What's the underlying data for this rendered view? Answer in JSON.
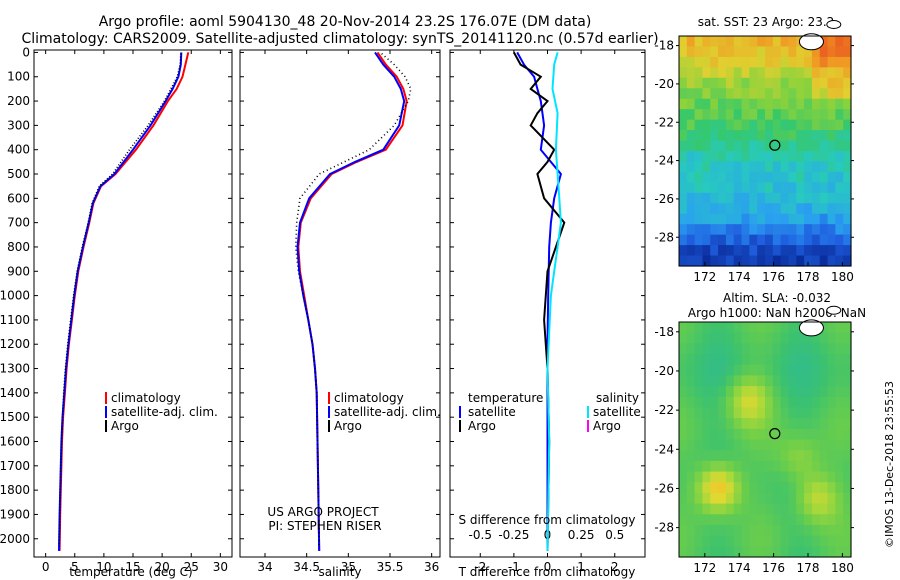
{
  "title_line1": "Argo profile: aoml 5904130_48 20-Nov-2014 23.2S 176.07E (DM data)",
  "title_line2": "Climatology: CARS2009. Satellite-adjusted climatology: synTS_20141120.nc (0.57d earlier)",
  "depth_ticks": [
    "0",
    "100",
    "200",
    "300",
    "400",
    "500",
    "600",
    "700",
    "800",
    "900",
    "1000",
    "1100",
    "1200",
    "1300",
    "1400",
    "1500",
    "1600",
    "1700",
    "1800",
    "1900",
    "2000"
  ],
  "colors": {
    "red": "#ff0000",
    "blue": "#0000ff",
    "black": "#000000",
    "cyan": "#00e5ff",
    "magenta": "#ff00ff"
  },
  "chart_data": [
    {
      "type": "line",
      "title": "",
      "xlabel": "temperature (deg C)",
      "ylabel": "depth",
      "xlim": [
        -2,
        32
      ],
      "ylim": [
        2075,
        -10
      ],
      "xticks": [
        "0",
        "5",
        "10",
        "15",
        "20",
        "25",
        "30"
      ],
      "xtick_values": [
        0,
        5,
        10,
        15,
        20,
        25,
        30
      ],
      "legend": [
        "climatology",
        "satellite-adj. clim.",
        "Argo"
      ],
      "series": [
        {
          "name": "climatology",
          "color": "red",
          "dash": "",
          "x": [
            24.5,
            24.0,
            23.5,
            22.5,
            21.0,
            18.5,
            15.5,
            12.0,
            9.5,
            8.2,
            7.5,
            6.5,
            5.6,
            5.0,
            4.5,
            4.0,
            3.6,
            3.3,
            3.0,
            2.8,
            2.6,
            2.5,
            2.4
          ],
          "y": [
            0,
            50,
            100,
            150,
            200,
            300,
            400,
            500,
            550,
            620,
            700,
            800,
            900,
            1000,
            1100,
            1200,
            1300,
            1400,
            1500,
            1600,
            1800,
            1900,
            2050
          ]
        },
        {
          "name": "satellite-adj. clim.",
          "color": "blue",
          "dash": "",
          "x": [
            23.3,
            23.2,
            22.8,
            21.8,
            20.6,
            18.0,
            15.0,
            11.8,
            9.4,
            8.1,
            7.4,
            6.4,
            5.5,
            4.9,
            4.4,
            3.9,
            3.5,
            3.2,
            2.9,
            2.7,
            2.5,
            2.4,
            2.3
          ],
          "y": [
            0,
            50,
            100,
            150,
            200,
            300,
            400,
            500,
            550,
            620,
            700,
            800,
            900,
            1000,
            1100,
            1200,
            1300,
            1400,
            1500,
            1600,
            1800,
            1900,
            2050
          ]
        },
        {
          "name": "Argo",
          "color": "black",
          "dash": "1,2",
          "x": [
            23.2,
            23.1,
            22.6,
            21.5,
            20.4,
            17.6,
            14.4,
            11.5,
            9.2,
            8.0,
            7.3,
            6.3,
            5.4,
            4.8,
            4.3,
            3.8,
            3.4,
            3.1,
            2.9,
            2.7,
            2.5,
            2.4,
            2.3
          ],
          "y": [
            5,
            50,
            100,
            150,
            200,
            300,
            400,
            500,
            550,
            620,
            700,
            800,
            900,
            1000,
            1100,
            1200,
            1300,
            1400,
            1500,
            1600,
            1800,
            1900,
            2030
          ]
        }
      ]
    },
    {
      "type": "line",
      "title": "",
      "xlabel": "salinity",
      "ylabel": "depth",
      "xlim": [
        33.7,
        36.1
      ],
      "ylim": [
        2075,
        -10
      ],
      "xticks": [
        "34",
        "34.5",
        "35",
        "35.5",
        "36"
      ],
      "xtick_values": [
        34,
        34.5,
        35,
        35.5,
        36
      ],
      "legend": [
        "climatology",
        "satellite-adj. clim.",
        "Argo"
      ],
      "annotation_1": "US ARGO PROJECT",
      "annotation_2": "PI: STEPHEN RISER",
      "series": [
        {
          "name": "climatology",
          "color": "red",
          "dash": "",
          "x": [
            35.35,
            35.45,
            35.58,
            35.66,
            35.7,
            35.65,
            35.45,
            35.1,
            34.8,
            34.55,
            34.43,
            34.4,
            34.42,
            34.47,
            34.52,
            34.57,
            34.6,
            34.62,
            34.63,
            34.64,
            34.65
          ],
          "y": [
            0,
            50,
            100,
            150,
            200,
            300,
            400,
            450,
            500,
            600,
            700,
            800,
            900,
            1000,
            1100,
            1200,
            1300,
            1400,
            1600,
            1800,
            2050
          ]
        },
        {
          "name": "satellite-adj. clim.",
          "color": "blue",
          "dash": "",
          "x": [
            35.32,
            35.42,
            35.55,
            35.63,
            35.67,
            35.61,
            35.42,
            35.08,
            34.78,
            34.53,
            34.42,
            34.39,
            34.41,
            34.46,
            34.52,
            34.57,
            34.6,
            34.62,
            34.63,
            34.64,
            34.65
          ],
          "y": [
            0,
            50,
            100,
            150,
            200,
            300,
            400,
            450,
            500,
            600,
            700,
            800,
            900,
            1000,
            1100,
            1200,
            1300,
            1400,
            1600,
            1800,
            2050
          ]
        },
        {
          "name": "Argo",
          "color": "black",
          "dash": "1,3",
          "x": [
            35.4,
            35.55,
            35.68,
            35.75,
            35.72,
            35.55,
            35.25,
            34.95,
            34.65,
            34.42,
            34.38,
            34.37,
            34.4,
            34.46,
            34.52,
            34.57,
            34.6,
            34.62,
            34.63,
            34.64,
            34.65
          ],
          "y": [
            5,
            50,
            100,
            150,
            200,
            300,
            400,
            450,
            500,
            600,
            700,
            800,
            900,
            1000,
            1100,
            1200,
            1300,
            1400,
            1600,
            1800,
            2030
          ]
        }
      ]
    },
    {
      "type": "line",
      "title": "",
      "xlabel": "T difference from climatology",
      "xlabel2": "S difference from climatology",
      "ylabel": "depth",
      "xlim": [
        -2.9,
        2.9
      ],
      "ylim": [
        2075,
        -10
      ],
      "xticks": [
        "-2",
        "-1",
        "0",
        "1",
        "2"
      ],
      "xtick_values": [
        -2,
        -1,
        0,
        1,
        2
      ],
      "xticks2": [
        "-0.5",
        "-0.25",
        "0",
        "0.25",
        "0.5"
      ],
      "xtick2_positions": [
        -2,
        -1,
        0,
        1,
        2
      ],
      "legend_header_left": "temperature",
      "legend_header_right": "salinity",
      "legend": [
        "satellite",
        "Argo",
        "satellite",
        "Argo"
      ],
      "series": [
        {
          "name": "T satellite",
          "color": "blue",
          "dash": "",
          "x": [
            -0.9,
            -0.7,
            -0.4,
            -0.3,
            -0.2,
            -0.1,
            -0.2,
            0.4,
            0.2,
            0.1,
            0.05,
            0.02,
            0.0,
            0.0,
            0.0
          ],
          "y": [
            0,
            50,
            100,
            150,
            200,
            300,
            400,
            500,
            600,
            700,
            800,
            1000,
            1200,
            1600,
            2050
          ]
        },
        {
          "name": "T Argo",
          "color": "black",
          "dash": "",
          "x": [
            -1.0,
            -0.8,
            -0.2,
            -0.5,
            0.0,
            -0.3,
            -0.5,
            0.2,
            0.0,
            -0.3,
            -0.1,
            0.5,
            0.0,
            -0.1,
            0.0,
            0.05,
            0.0
          ],
          "y": [
            0,
            50,
            100,
            150,
            200,
            250,
            300,
            400,
            450,
            500,
            600,
            700,
            900,
            1100,
            1300,
            1600,
            2050
          ]
        },
        {
          "name": "S satellite",
          "color": "cyan",
          "dash": "",
          "x": [
            0.3,
            0.2,
            0.15,
            0.3,
            0.25,
            0.35,
            0.4,
            0.3,
            0.2,
            0.1,
            0.0,
            0.05,
            0.0
          ],
          "y": [
            0,
            50,
            150,
            250,
            400,
            600,
            700,
            800,
            900,
            1000,
            1300,
            1600,
            2050
          ]
        },
        {
          "name": "S Argo",
          "color": "magenta",
          "dash": "",
          "x": [
            0.0,
            0.0
          ],
          "y": [
            0,
            0
          ]
        }
      ]
    },
    {
      "type": "heatmap",
      "title": "sat. SST: 23 Argo: 23.2",
      "xlim": [
        170.5,
        180.5
      ],
      "ylim": [
        -29.5,
        -17.5
      ],
      "xticks": [
        "172",
        "174",
        "176",
        "178",
        "180"
      ],
      "xtick_values": [
        172,
        174,
        176,
        178,
        180
      ],
      "yticks": [
        "-18",
        "-20",
        "-22",
        "-24",
        "-26",
        "-28"
      ],
      "ytick_values": [
        -18,
        -20,
        -22,
        -24,
        -26,
        -28
      ],
      "marker": {
        "lon": 176.07,
        "lat": -23.2
      },
      "colormap": [
        "#0a2d9c",
        "#1f5fe0",
        "#2aa0f0",
        "#28c9c0",
        "#36c86a",
        "#8cd23c",
        "#e0d030",
        "#f09a24",
        "#e8501e"
      ],
      "row_levels": [
        6.5,
        6.3,
        6.0,
        5.6,
        5.2,
        4.9,
        4.6,
        4.4,
        4.2,
        3.9,
        3.5,
        3.1,
        3.0,
        2.9,
        2.8,
        2.6,
        2.3,
        2.0,
        1.5,
        1.0,
        0.6,
        0.3
      ]
    },
    {
      "type": "heatmap",
      "title": "Altim. SLA: -0.032",
      "subtitle": "Argo h1000: NaN h2000: NaN",
      "xlim": [
        170.5,
        180.5
      ],
      "ylim": [
        -29.5,
        -17.5
      ],
      "xticks": [
        "172",
        "174",
        "176",
        "178",
        "180"
      ],
      "xtick_values": [
        172,
        174,
        176,
        178,
        180
      ],
      "yticks": [
        "-18",
        "-20",
        "-22",
        "-24",
        "-26",
        "-28"
      ],
      "ytick_values": [
        -18,
        -20,
        -22,
        -24,
        -26,
        -28
      ],
      "marker": {
        "lon": 176.07,
        "lat": -23.2
      },
      "colormap": [
        "#2ab8a0",
        "#3cc26e",
        "#6cce4a",
        "#a8d83a",
        "#e8d830",
        "#f2b020"
      ],
      "blobs": [
        {
          "lon": 172.8,
          "lat": -26.0,
          "level": 5.5
        },
        {
          "lon": 178.5,
          "lat": -26.5,
          "level": 4.0
        },
        {
          "lon": 174.5,
          "lat": -21.5,
          "level": 3.8
        },
        {
          "lon": 177.5,
          "lat": -24.5,
          "level": 3.2
        }
      ]
    }
  ],
  "legend_items": [
    "climatology",
    "satellite-adj. clim.",
    "Argo"
  ],
  "footer_text": "©IMOS 13-Dec-2018 23:55:53"
}
